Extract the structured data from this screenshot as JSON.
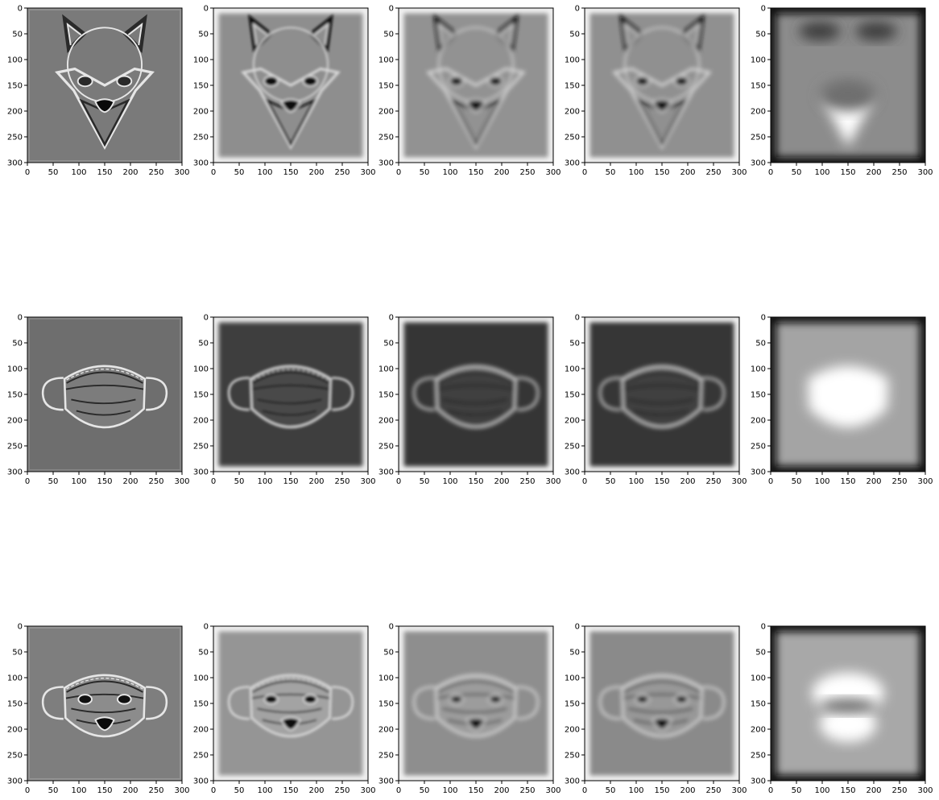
{
  "figure": {
    "rows": 3,
    "cols": 5
  },
  "chart_data": [
    {
      "type": "heatmap",
      "panel": "fox-raw",
      "row": 1,
      "col": 1,
      "subject": "fox",
      "style": "sharp",
      "background": "#7a7a7a",
      "xlim": [
        0,
        300
      ],
      "ylim": [
        300,
        0
      ],
      "xticks": [
        0,
        50,
        100,
        150,
        200,
        250,
        300
      ],
      "yticks": [
        0,
        50,
        100,
        150,
        200,
        250,
        300
      ],
      "xticklabels": [
        "0",
        "50",
        "100",
        "150",
        "200",
        "250",
        "300"
      ],
      "yticklabels": [
        "0",
        "50",
        "100",
        "150",
        "200",
        "250",
        "300"
      ]
    },
    {
      "type": "heatmap",
      "panel": "fox-blur-1",
      "row": 1,
      "col": 2,
      "subject": "fox",
      "style": "soft",
      "background": "#8e8e8e",
      "xlim": [
        0,
        300
      ],
      "ylim": [
        300,
        0
      ],
      "xticks": [
        0,
        50,
        100,
        150,
        200,
        250,
        300
      ],
      "yticks": [
        0,
        50,
        100,
        150,
        200,
        250,
        300
      ],
      "xticklabels": [
        "0",
        "50",
        "100",
        "150",
        "200",
        "250",
        "300"
      ],
      "yticklabels": [
        "0",
        "50",
        "100",
        "150",
        "200",
        "250",
        "300"
      ]
    },
    {
      "type": "heatmap",
      "panel": "fox-blur-2",
      "row": 1,
      "col": 3,
      "subject": "fox",
      "style": "soft",
      "background": "#929292",
      "xlim": [
        0,
        300
      ],
      "ylim": [
        300,
        0
      ],
      "xticks": [
        0,
        50,
        100,
        150,
        200,
        250,
        300
      ],
      "yticks": [
        0,
        50,
        100,
        150,
        200,
        250,
        300
      ],
      "xticklabels": [
        "0",
        "50",
        "100",
        "150",
        "200",
        "250",
        "300"
      ],
      "yticklabels": [
        "0",
        "50",
        "100",
        "150",
        "200",
        "250",
        "300"
      ]
    },
    {
      "type": "heatmap",
      "panel": "fox-blur-3",
      "row": 1,
      "col": 4,
      "subject": "fox",
      "style": "soft",
      "background": "#909090",
      "xlim": [
        0,
        300
      ],
      "ylim": [
        300,
        0
      ],
      "xticks": [
        0,
        50,
        100,
        150,
        200,
        250,
        300
      ],
      "yticks": [
        0,
        50,
        100,
        150,
        200,
        250,
        300
      ],
      "xticklabels": [
        "0",
        "50",
        "100",
        "150",
        "200",
        "250",
        "300"
      ],
      "yticklabels": [
        "0",
        "50",
        "100",
        "150",
        "200",
        "250",
        "300"
      ]
    },
    {
      "type": "heatmap",
      "panel": "fox-lowpass",
      "row": 1,
      "col": 5,
      "subject": "fox",
      "style": "lowpass",
      "background": "#8c8c8c",
      "xlim": [
        0,
        300
      ],
      "ylim": [
        300,
        0
      ],
      "xticks": [
        0,
        50,
        100,
        150,
        200,
        250,
        300
      ],
      "yticks": [
        0,
        50,
        100,
        150,
        200,
        250,
        300
      ],
      "xticklabels": [
        "0",
        "50",
        "100",
        "150",
        "200",
        "250",
        "300"
      ],
      "yticklabels": [
        "0",
        "50",
        "100",
        "150",
        "200",
        "250",
        "300"
      ]
    },
    {
      "type": "heatmap",
      "panel": "mask-raw",
      "row": 2,
      "col": 1,
      "subject": "mask",
      "style": "sharp",
      "background": "#6e6e6e",
      "xlim": [
        0,
        300
      ],
      "ylim": [
        300,
        0
      ],
      "xticks": [
        0,
        50,
        100,
        150,
        200,
        250,
        300
      ],
      "yticks": [
        0,
        50,
        100,
        150,
        200,
        250,
        300
      ],
      "xticklabels": [
        "0",
        "50",
        "100",
        "150",
        "200",
        "250",
        "300"
      ],
      "yticklabels": [
        "0",
        "50",
        "100",
        "150",
        "200",
        "250",
        "300"
      ]
    },
    {
      "type": "heatmap",
      "panel": "mask-blur-1",
      "row": 2,
      "col": 2,
      "subject": "mask",
      "style": "soft",
      "background": "#3e3e3e",
      "xlim": [
        0,
        300
      ],
      "ylim": [
        300,
        0
      ],
      "xticks": [
        0,
        50,
        100,
        150,
        200,
        250,
        300
      ],
      "yticks": [
        0,
        50,
        100,
        150,
        200,
        250,
        300
      ],
      "xticklabels": [
        "0",
        "50",
        "100",
        "150",
        "200",
        "250",
        "300"
      ],
      "yticklabels": [
        "0",
        "50",
        "100",
        "150",
        "200",
        "250",
        "300"
      ]
    },
    {
      "type": "heatmap",
      "panel": "mask-blur-2",
      "row": 2,
      "col": 3,
      "subject": "mask",
      "style": "soft",
      "background": "#353535",
      "xlim": [
        0,
        300
      ],
      "ylim": [
        300,
        0
      ],
      "xticks": [
        0,
        50,
        100,
        150,
        200,
        250,
        300
      ],
      "yticks": [
        0,
        50,
        100,
        150,
        200,
        250,
        300
      ],
      "xticklabels": [
        "0",
        "50",
        "100",
        "150",
        "200",
        "250",
        "300"
      ],
      "yticklabels": [
        "0",
        "50",
        "100",
        "150",
        "200",
        "250",
        "300"
      ]
    },
    {
      "type": "heatmap",
      "panel": "mask-blur-3",
      "row": 2,
      "col": 4,
      "subject": "mask",
      "style": "soft",
      "background": "#363636",
      "xlim": [
        0,
        300
      ],
      "ylim": [
        300,
        0
      ],
      "xticks": [
        0,
        50,
        100,
        150,
        200,
        250,
        300
      ],
      "yticks": [
        0,
        50,
        100,
        150,
        200,
        250,
        300
      ],
      "xticklabels": [
        "0",
        "50",
        "100",
        "150",
        "200",
        "250",
        "300"
      ],
      "yticklabels": [
        "0",
        "50",
        "100",
        "150",
        "200",
        "250",
        "300"
      ]
    },
    {
      "type": "heatmap",
      "panel": "mask-lowpass",
      "row": 2,
      "col": 5,
      "subject": "mask",
      "style": "lowpass",
      "background": "#a4a4a4",
      "xlim": [
        0,
        300
      ],
      "ylim": [
        300,
        0
      ],
      "xticks": [
        0,
        50,
        100,
        150,
        200,
        250,
        300
      ],
      "yticks": [
        0,
        50,
        100,
        150,
        200,
        250,
        300
      ],
      "xticklabels": [
        "0",
        "50",
        "100",
        "150",
        "200",
        "250",
        "300"
      ],
      "yticklabels": [
        "0",
        "50",
        "100",
        "150",
        "200",
        "250",
        "300"
      ]
    },
    {
      "type": "heatmap",
      "panel": "hybrid-raw",
      "row": 3,
      "col": 1,
      "subject": "hybrid",
      "style": "sharp",
      "background": "#7e7e7e",
      "xlim": [
        0,
        300
      ],
      "ylim": [
        300,
        0
      ],
      "xticks": [
        0,
        50,
        100,
        150,
        200,
        250,
        300
      ],
      "yticks": [
        0,
        50,
        100,
        150,
        200,
        250,
        300
      ],
      "xticklabels": [
        "0",
        "50",
        "100",
        "150",
        "200",
        "250",
        "300"
      ],
      "yticklabels": [
        "0",
        "50",
        "100",
        "150",
        "200",
        "250",
        "300"
      ]
    },
    {
      "type": "heatmap",
      "panel": "hybrid-blur-1",
      "row": 3,
      "col": 2,
      "subject": "hybrid",
      "style": "soft",
      "background": "#959595",
      "xlim": [
        0,
        300
      ],
      "ylim": [
        300,
        0
      ],
      "xticks": [
        0,
        50,
        100,
        150,
        200,
        250,
        300
      ],
      "yticks": [
        0,
        50,
        100,
        150,
        200,
        250,
        300
      ],
      "xticklabels": [
        "0",
        "50",
        "100",
        "150",
        "200",
        "250",
        "300"
      ],
      "yticklabels": [
        "0",
        "50",
        "100",
        "150",
        "200",
        "250",
        "300"
      ]
    },
    {
      "type": "heatmap",
      "panel": "hybrid-blur-2",
      "row": 3,
      "col": 3,
      "subject": "hybrid",
      "style": "soft",
      "background": "#8e8e8e",
      "xlim": [
        0,
        300
      ],
      "ylim": [
        300,
        0
      ],
      "xticks": [
        0,
        50,
        100,
        150,
        200,
        250,
        300
      ],
      "yticks": [
        0,
        50,
        100,
        150,
        200,
        250,
        300
      ],
      "xticklabels": [
        "0",
        "50",
        "100",
        "150",
        "200",
        "250",
        "300"
      ],
      "yticklabels": [
        "0",
        "50",
        "100",
        "150",
        "200",
        "250",
        "300"
      ]
    },
    {
      "type": "heatmap",
      "panel": "hybrid-blur-3",
      "row": 3,
      "col": 4,
      "subject": "hybrid",
      "style": "soft",
      "background": "#8a8a8a",
      "xlim": [
        0,
        300
      ],
      "ylim": [
        300,
        0
      ],
      "xticks": [
        0,
        50,
        100,
        150,
        200,
        250,
        300
      ],
      "yticks": [
        0,
        50,
        100,
        150,
        200,
        250,
        300
      ],
      "xticklabels": [
        "0",
        "50",
        "100",
        "150",
        "200",
        "250",
        "300"
      ],
      "yticklabels": [
        "0",
        "50",
        "100",
        "150",
        "200",
        "250",
        "300"
      ]
    },
    {
      "type": "heatmap",
      "panel": "hybrid-lowpass",
      "row": 3,
      "col": 5,
      "subject": "hybrid",
      "style": "lowpass",
      "background": "#a8a8a8",
      "xlim": [
        0,
        300
      ],
      "ylim": [
        300,
        0
      ],
      "xticks": [
        0,
        50,
        100,
        150,
        200,
        250,
        300
      ],
      "yticks": [
        0,
        50,
        100,
        150,
        200,
        250,
        300
      ],
      "xticklabels": [
        "0",
        "50",
        "100",
        "150",
        "200",
        "250",
        "300"
      ],
      "yticklabels": [
        "0",
        "50",
        "100",
        "150",
        "200",
        "250",
        "300"
      ]
    }
  ]
}
